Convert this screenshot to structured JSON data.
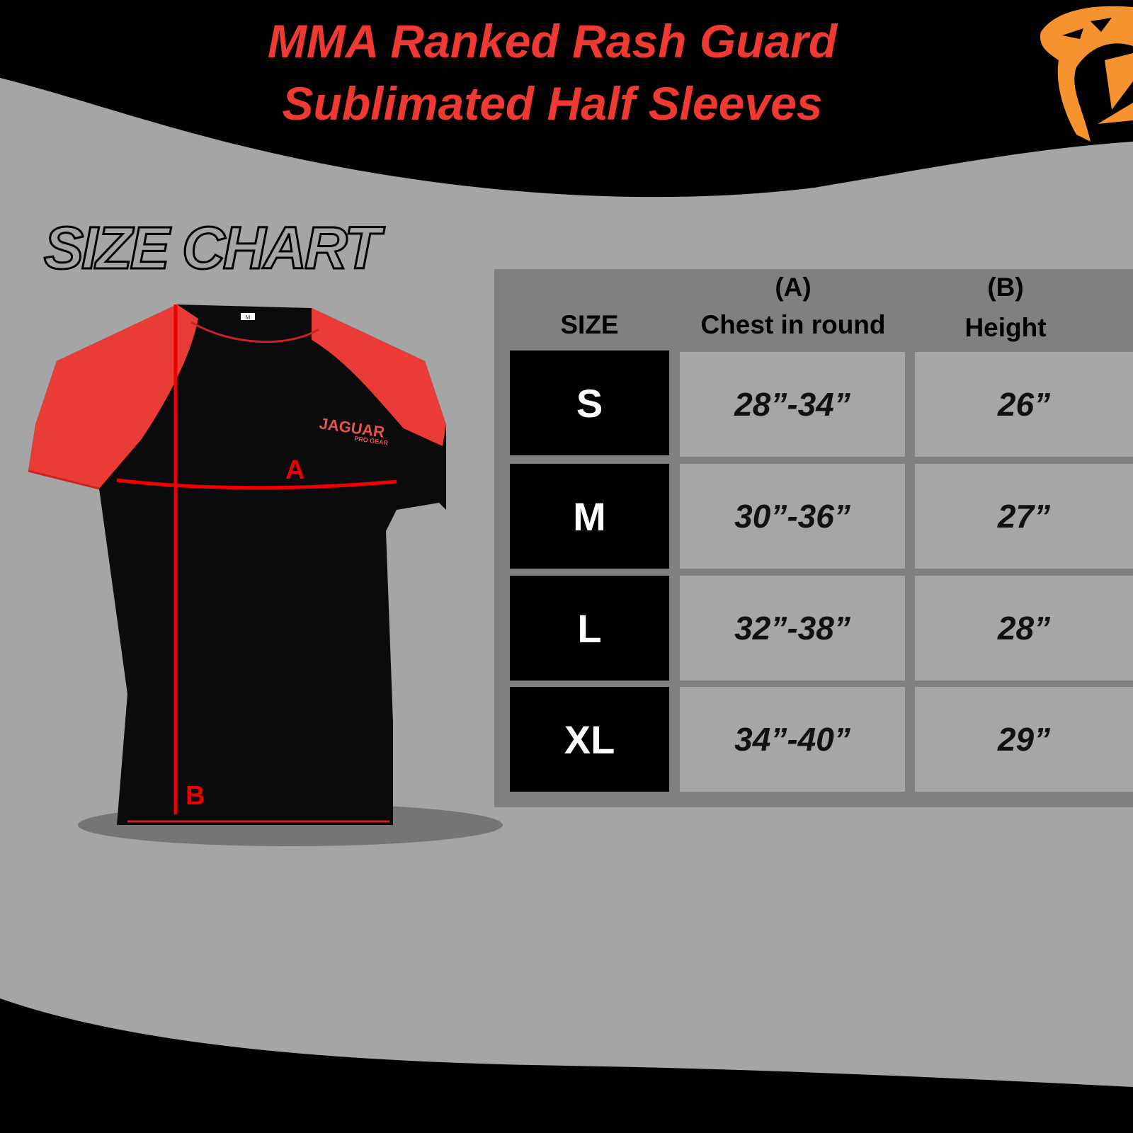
{
  "header": {
    "title_line1": "MMA Ranked Rash Guard",
    "title_line2": "Sublimated Half Sleeves",
    "logo_icon": "tiger-head-icon",
    "colors": {
      "title": "#ee3a32",
      "logo": "#f7932f",
      "band": "#000000",
      "background": "#a5a5a5"
    }
  },
  "section_title": "SIZE CHART",
  "product": {
    "brand": "JAGUAR",
    "brand_sub": "PRO GEAR",
    "tag": "M",
    "measure_a": "A",
    "measure_b": "B"
  },
  "table": {
    "headers": {
      "size": "SIZE",
      "chest_code": "(A)",
      "chest": "Chest in round",
      "height_code": "(B)",
      "height": "Height"
    },
    "rows": [
      {
        "size": "S",
        "chest": "28”-34”",
        "height": "26”"
      },
      {
        "size": "M",
        "chest": "30”-36”",
        "height": "27”"
      },
      {
        "size": "L",
        "chest": "32”-38”",
        "height": "28”"
      },
      {
        "size": "XL",
        "chest": "34”-40”",
        "height": "29”"
      }
    ]
  }
}
